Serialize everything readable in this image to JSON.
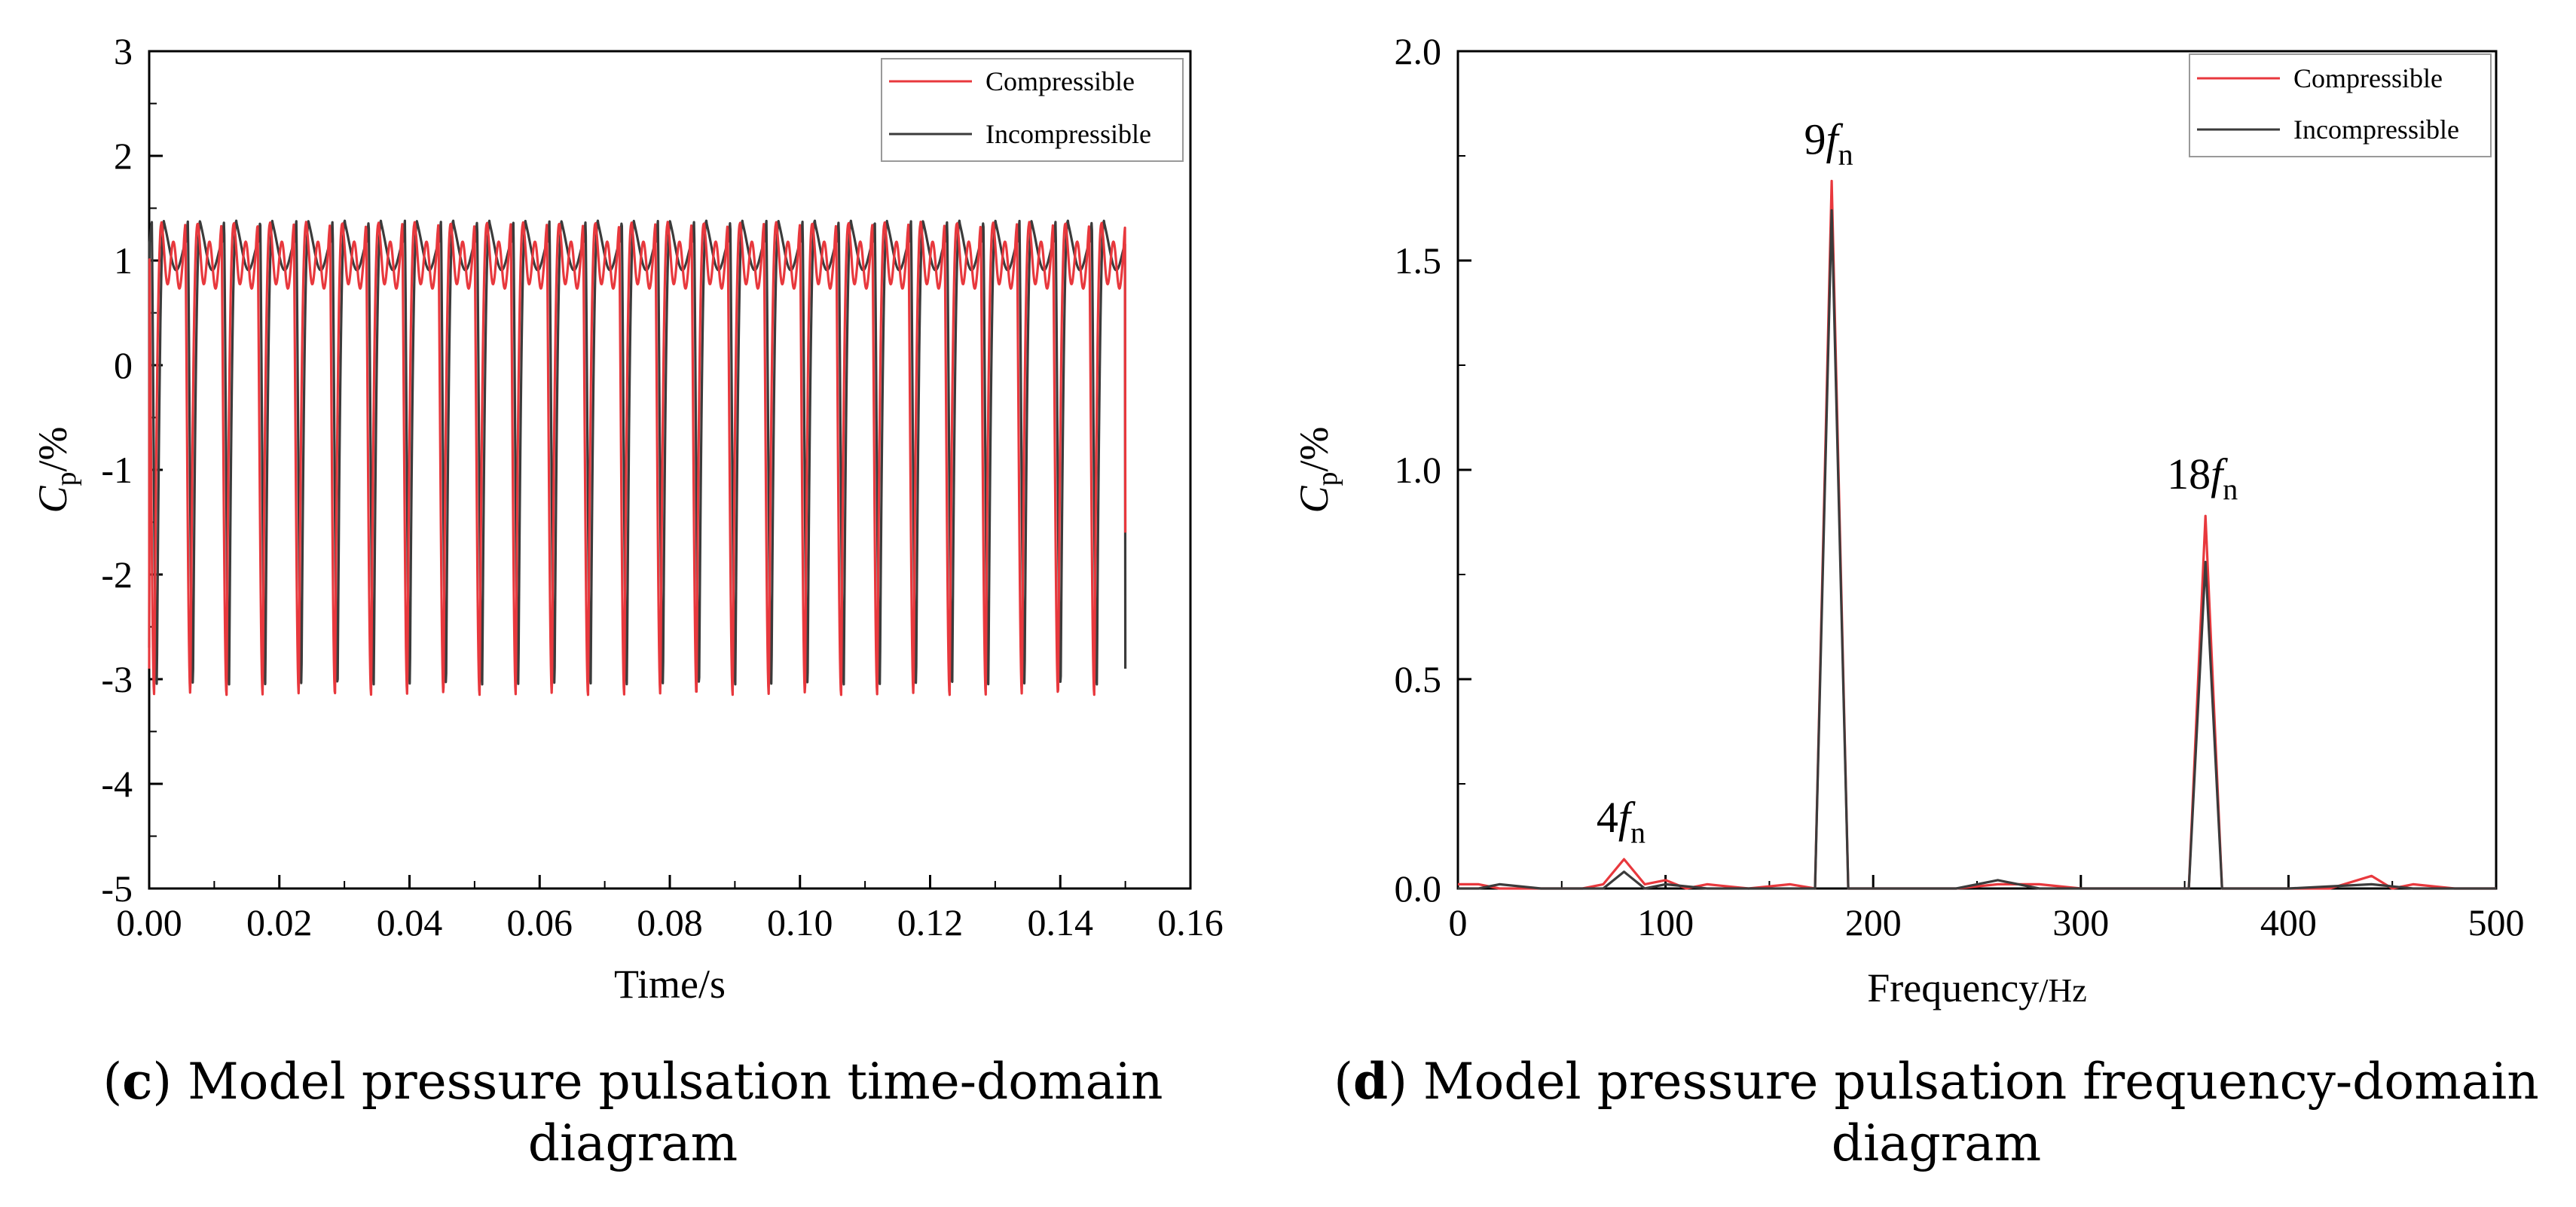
{
  "colors": {
    "compressible": "#e8383d",
    "incompressible": "#3b3b3b",
    "axis": "#000000"
  },
  "chart_data": [
    {
      "id": "c",
      "type": "line",
      "title": "",
      "xlabel": "Time/s",
      "ylabel_main": "C",
      "ylabel_sub": "p",
      "ylabel_tail": "/%",
      "xlim": [
        0.0,
        0.16
      ],
      "ylim": [
        -5,
        3
      ],
      "xticks": [
        "0.00",
        "0.02",
        "0.04",
        "0.06",
        "0.08",
        "0.10",
        "0.12",
        "0.14",
        "0.16"
      ],
      "xtick_values": [
        0,
        0.02,
        0.04,
        0.06,
        0.08,
        0.1,
        0.12,
        0.14,
        0.16
      ],
      "yticks": [
        "3",
        "2",
        "1",
        "0",
        "-1",
        "-2",
        "-3",
        "-4",
        "-5"
      ],
      "ytick_values": [
        3,
        2,
        1,
        0,
        -1,
        -2,
        -3,
        -4,
        -5
      ],
      "legend": {
        "placement": "top-right",
        "entries": [
          "Compressible",
          "Incompressible"
        ]
      },
      "signal": {
        "t_start": 0.0,
        "t_end": 0.15,
        "period_s": 0.0055556,
        "cycles": 27,
        "max_compressible": 1.35,
        "max_incompressible": 1.38,
        "min_compressible": -3.15,
        "min_incompressible": -3.05,
        "end_compressible": -1.6,
        "end_incompressible": -2.9
      },
      "series": [
        {
          "name": "Compressible",
          "key": "compressible"
        },
        {
          "name": "Incompressible",
          "key": "incompressible"
        }
      ],
      "caption": {
        "letter": "c",
        "text": " Model pressure pulsation time-domain diagram"
      }
    },
    {
      "id": "d",
      "type": "line",
      "title": "",
      "xlabel_main": "Frequency",
      "xlabel_unit": "/Hz",
      "ylabel_main": "C",
      "ylabel_sub": "p",
      "ylabel_tail": "/%",
      "xlim": [
        0,
        500
      ],
      "ylim": [
        0,
        2.0
      ],
      "xticks": [
        "0",
        "100",
        "200",
        "300",
        "400",
        "500"
      ],
      "xtick_values": [
        0,
        100,
        200,
        300,
        400,
        500
      ],
      "yticks": [
        "0.0",
        "0.5",
        "1.0",
        "1.5",
        "2.0"
      ],
      "ytick_values": [
        0,
        0.5,
        1.0,
        1.5,
        2.0
      ],
      "legend": {
        "placement": "top-right",
        "entries": [
          "Compressible",
          "Incompressible"
        ]
      },
      "series": [
        {
          "name": "Compressible",
          "key": "compressible",
          "points": [
            [
              0,
              0.01
            ],
            [
              10,
              0.01
            ],
            [
              20,
              0.0
            ],
            [
              40,
              0.0
            ],
            [
              60,
              0.0
            ],
            [
              70,
              0.01
            ],
            [
              80,
              0.07
            ],
            [
              90,
              0.01
            ],
            [
              100,
              0.02
            ],
            [
              110,
              0.0
            ],
            [
              120,
              0.01
            ],
            [
              140,
              0.0
            ],
            [
              160,
              0.01
            ],
            [
              172,
              0.0
            ],
            [
              180,
              1.69
            ],
            [
              188,
              0.0
            ],
            [
              200,
              0.0
            ],
            [
              240,
              0.0
            ],
            [
              260,
              0.01
            ],
            [
              280,
              0.01
            ],
            [
              300,
              0.0
            ],
            [
              340,
              0.0
            ],
            [
              352,
              0.0
            ],
            [
              360,
              0.89
            ],
            [
              368,
              0.0
            ],
            [
              400,
              0.0
            ],
            [
              420,
              0.0
            ],
            [
              440,
              0.03
            ],
            [
              450,
              0.0
            ],
            [
              460,
              0.01
            ],
            [
              480,
              0.0
            ],
            [
              500,
              0.0
            ]
          ]
        },
        {
          "name": "Incompressible",
          "key": "incompressible",
          "points": [
            [
              0,
              0.0
            ],
            [
              10,
              0.0
            ],
            [
              20,
              0.01
            ],
            [
              40,
              0.0
            ],
            [
              60,
              0.0
            ],
            [
              70,
              0.0
            ],
            [
              80,
              0.04
            ],
            [
              90,
              0.0
            ],
            [
              100,
              0.01
            ],
            [
              120,
              0.0
            ],
            [
              160,
              0.0
            ],
            [
              172,
              0.0
            ],
            [
              180,
              1.62
            ],
            [
              188,
              0.0
            ],
            [
              200,
              0.0
            ],
            [
              240,
              0.0
            ],
            [
              260,
              0.02
            ],
            [
              280,
              0.0
            ],
            [
              340,
              0.0
            ],
            [
              352,
              0.0
            ],
            [
              360,
              0.78
            ],
            [
              368,
              0.0
            ],
            [
              400,
              0.0
            ],
            [
              440,
              0.01
            ],
            [
              460,
              0.0
            ],
            [
              500,
              0.0
            ]
          ]
        }
      ],
      "annotations": [
        {
          "coef": "4",
          "sym": "f",
          "sub": "n",
          "x": 80,
          "y": 0.07
        },
        {
          "coef": "9",
          "sym": "f",
          "sub": "n",
          "x": 180,
          "y": 1.69
        },
        {
          "coef": "18",
          "sym": "f",
          "sub": "n",
          "x": 360,
          "y": 0.89
        }
      ],
      "caption": {
        "letter": "d",
        "text": " Model pressure pulsation frequency-domain diagram"
      }
    }
  ]
}
